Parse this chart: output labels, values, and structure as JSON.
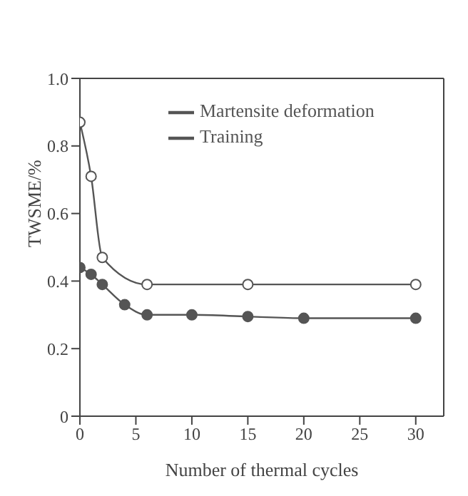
{
  "chart_data": {
    "type": "line",
    "xlabel": "Number of thermal cycles",
    "ylabel": "TWSME/%",
    "xlim": [
      0,
      32.5
    ],
    "xticks": [
      0,
      5,
      10,
      15,
      20,
      25,
      30
    ],
    "ylim": [
      0,
      1.0
    ],
    "yticks": [
      0,
      0.2,
      0.4,
      0.6,
      0.8,
      {
        "value": 1.0,
        "label": "1.0"
      }
    ],
    "grid": false,
    "legend": "top right",
    "marker": "circle",
    "line_style": "solid",
    "series": [
      {
        "name": "Martensite deformation",
        "color": "#555555",
        "x": [
          0,
          1,
          2,
          4,
          6,
          10,
          15,
          20,
          30
        ],
        "values": [
          0.44,
          0.42,
          0.39,
          0.33,
          0.3,
          0.3,
          0.295,
          0.29,
          0.29
        ]
      },
      {
        "name": "Training",
        "color": "#555555",
        "x": [
          0,
          1,
          2,
          6,
          15,
          30
        ],
        "values": [
          0.87,
          0.71,
          0.47,
          0.39,
          0.39,
          0.39
        ]
      }
    ]
  }
}
